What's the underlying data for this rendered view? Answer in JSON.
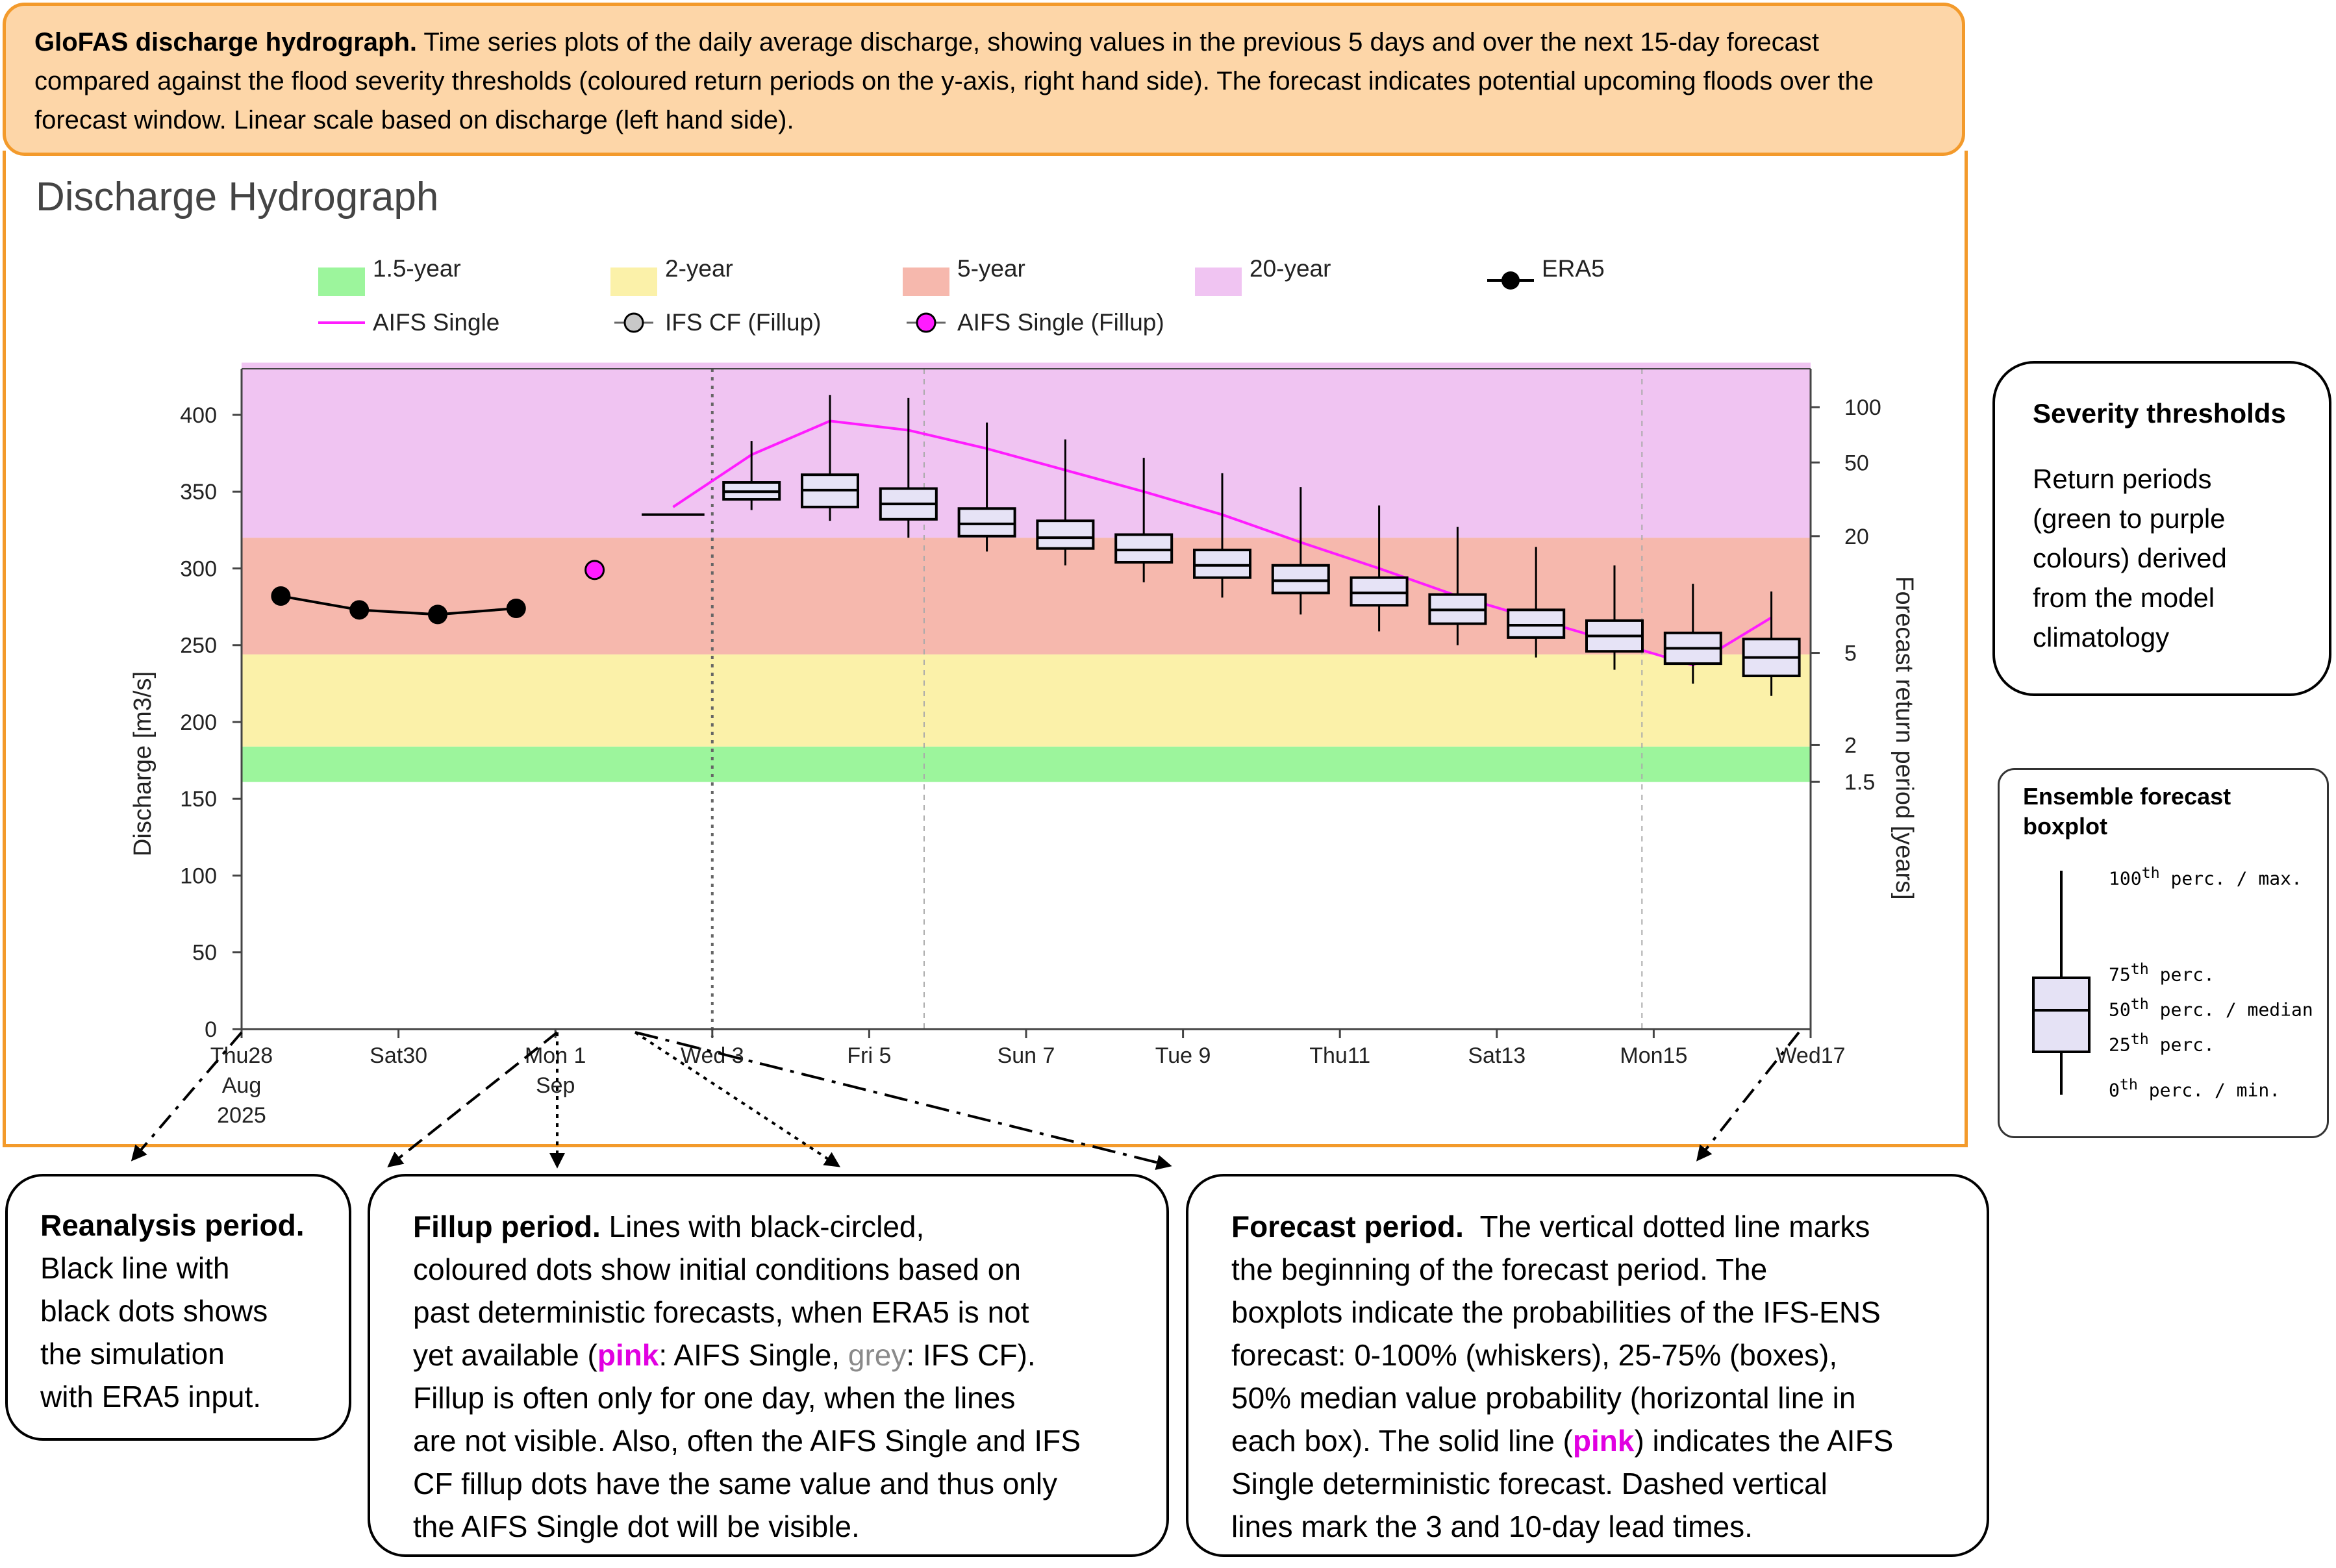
{
  "header": {
    "title": "GloFAS discharge hydrograph.",
    "text": " Time series plots of the daily average discharge, showing values in the previous 5 days and over the next 15-day forecast compared against the flood severity thresholds (coloured return periods on the y-axis, right hand side). The forecast indicates potential upcoming floods over the forecast window. Linear scale based on discharge (left hand side)."
  },
  "chart_title": "Discharge Hydrograph",
  "legend": [
    {
      "label": "1.5-year",
      "color": "#9cf59c"
    },
    {
      "label": "2-year",
      "color": "#fbf1a9"
    },
    {
      "label": "5-year",
      "color": "#f6b8ad"
    },
    {
      "label": "20-year",
      "color": "#f0c4f2"
    },
    {
      "label": "ERA5",
      "color": "#000000"
    },
    {
      "label": "AIFS Single",
      "color": "#ff1cff"
    },
    {
      "label": "IFS CF (Fillup)",
      "color": "#c8c8c8"
    },
    {
      "label": "AIFS Single (Fillup)",
      "color": "#ff1cff"
    }
  ],
  "chart_data": {
    "type": "line",
    "title": "Discharge Hydrograph",
    "ylabel": "Discharge [m3/s]",
    "y2label": "Forecast return period [years]",
    "ylim": [
      0,
      430
    ],
    "y_ticks": [
      0,
      50,
      100,
      150,
      200,
      250,
      300,
      350,
      400
    ],
    "x_ticks": [
      {
        "day": 0,
        "label": "Thu28\nAug\n2025"
      },
      {
        "day": 2,
        "label": "Sat30"
      },
      {
        "day": 4,
        "label": "Mon 1\nSep"
      },
      {
        "day": 6,
        "label": "Wed 3"
      },
      {
        "day": 8,
        "label": "Fri 5"
      },
      {
        "day": 10,
        "label": "Sun 7"
      },
      {
        "day": 12,
        "label": "Tue 9"
      },
      {
        "day": 14,
        "label": "Thu11"
      },
      {
        "day": 16,
        "label": "Sat13"
      },
      {
        "day": 18,
        "label": "Mon15"
      },
      {
        "day": 20,
        "label": "Wed17"
      }
    ],
    "return_period_ticks": [
      {
        "label": "100",
        "value": 405
      },
      {
        "label": "50",
        "value": 369
      },
      {
        "label": "20",
        "value": 321
      },
      {
        "label": "5",
        "value": 245
      },
      {
        "label": "2",
        "value": 185
      },
      {
        "label": "1.5",
        "value": 161
      }
    ],
    "threshold_bands": [
      {
        "name": "1.5-year",
        "from": 161,
        "to": 184,
        "color": "#9cf59c"
      },
      {
        "name": "2-year",
        "from": 184,
        "to": 244,
        "color": "#fbf1a9"
      },
      {
        "name": "5-year",
        "from": 244,
        "to": 320,
        "color": "#f6b8ad"
      },
      {
        "name": "20-year",
        "from": 320,
        "to": 434,
        "color": "#f0c4f2"
      }
    ],
    "series": [
      {
        "name": "ERA5",
        "x": [
          0.5,
          1.5,
          2.5,
          3.5
        ],
        "values": [
          282,
          273,
          270,
          274
        ],
        "color": "#000000"
      },
      {
        "name": "AIFS Single (Fillup)",
        "x": [
          4.5
        ],
        "values": [
          299
        ],
        "color": "#ff1cff"
      },
      {
        "name": "AIFS Single",
        "x": [
          5.5,
          6.5,
          7.5,
          8.5,
          9.5,
          10.5,
          11.5,
          12.5,
          13.5,
          14.5,
          15.5,
          16.5,
          17.5,
          18.5,
          19.5
        ],
        "values": [
          340,
          374,
          396,
          390,
          378,
          364,
          350,
          335,
          317,
          300,
          282,
          267,
          252,
          237,
          268
        ],
        "color": "#ff1cff"
      }
    ],
    "control_line": {
      "x": [
        5.1,
        5.9
      ],
      "value": 335
    },
    "boxplots": [
      {
        "x": 6.5,
        "min": 338,
        "q1": 345,
        "median": 350,
        "q3": 356,
        "max": 383
      },
      {
        "x": 7.5,
        "min": 331,
        "q1": 340,
        "median": 351,
        "q3": 361,
        "max": 413
      },
      {
        "x": 8.5,
        "min": 320,
        "q1": 332,
        "median": 342,
        "q3": 352,
        "max": 411
      },
      {
        "x": 9.5,
        "min": 311,
        "q1": 321,
        "median": 329,
        "q3": 339,
        "max": 395
      },
      {
        "x": 10.5,
        "min": 302,
        "q1": 313,
        "median": 320,
        "q3": 331,
        "max": 384
      },
      {
        "x": 11.5,
        "min": 291,
        "q1": 304,
        "median": 312,
        "q3": 322,
        "max": 372
      },
      {
        "x": 12.5,
        "min": 281,
        "q1": 294,
        "median": 302,
        "q3": 312,
        "max": 362
      },
      {
        "x": 13.5,
        "min": 270,
        "q1": 284,
        "median": 292,
        "q3": 302,
        "max": 353
      },
      {
        "x": 14.5,
        "min": 259,
        "q1": 276,
        "median": 284,
        "q3": 294,
        "max": 341
      },
      {
        "x": 15.5,
        "min": 250,
        "q1": 264,
        "median": 273,
        "q3": 283,
        "max": 327
      },
      {
        "x": 16.5,
        "min": 242,
        "q1": 255,
        "median": 263,
        "q3": 273,
        "max": 314
      },
      {
        "x": 17.5,
        "min": 234,
        "q1": 246,
        "median": 256,
        "q3": 266,
        "max": 302
      },
      {
        "x": 18.5,
        "min": 225,
        "q1": 238,
        "median": 248,
        "q3": 258,
        "max": 290
      },
      {
        "x": 19.5,
        "min": 217,
        "q1": 230,
        "median": 242,
        "q3": 254,
        "max": 285
      }
    ],
    "grid": false,
    "legend_position": "top"
  },
  "severity": {
    "title": "Severity thresholds",
    "lines": [
      "Return periods",
      "(green to purple",
      "colours) derived",
      "from the model",
      "climatology"
    ]
  },
  "boxplot_legend": {
    "title_1": "Ensemble forecast",
    "title_2": "boxplot",
    "max_sup": "th",
    "max_pre": "100",
    "max_post": " perc. / max.",
    "p75_pre": "75",
    "p75_post": " perc.",
    "p50_pre": "50",
    "p50_post": " perc. / median",
    "p25_pre": "25",
    "p25_post": " perc.",
    "min_pre": "0",
    "min_post": " perc. / min."
  },
  "callouts": {
    "reanalysis": {
      "title": "Reanalysis period.",
      "lines": [
        "Black line with",
        "black dots shows",
        "the simulation",
        "with ERA5 input."
      ]
    },
    "fillup": {
      "title": "Fillup period.",
      "l1_rest": " Lines with black-circled,",
      "l2": "coloured dots show initial conditions based on",
      "l3": "past deterministic forecasts, when ERA5 is not",
      "l4_pre": "yet available (",
      "l4_pink": "pink",
      "l4_mid": ": AIFS Single, ",
      "l4_grey": "grey",
      "l4_post": ": IFS CF).",
      "l5": "Fillup is often only for one day, when the lines",
      "l6": "are not visible. Also, often the AIFS Single and IFS",
      "l7": "CF fillup dots have the same value and thus only",
      "l8": "the AIFS Single dot will be visible."
    },
    "forecast": {
      "title": "Forecast period.",
      "l1_rest": "  The vertical dotted line marks",
      "l2": "the beginning of the forecast period. The",
      "l3": "boxplots indicate the probabilities of the IFS-ENS",
      "l4": "forecast: 0-100% (whiskers), 25-75% (boxes),",
      "l5": "50% median value probability (horizontal line in",
      "l6_pre": "each box). The solid line (",
      "l6_pink": "pink",
      "l6_post": ") indicates the AIFS",
      "l7": "Single deterministic forecast. Dashed vertical",
      "l8": "lines mark the 3 and 10-day lead times."
    }
  }
}
